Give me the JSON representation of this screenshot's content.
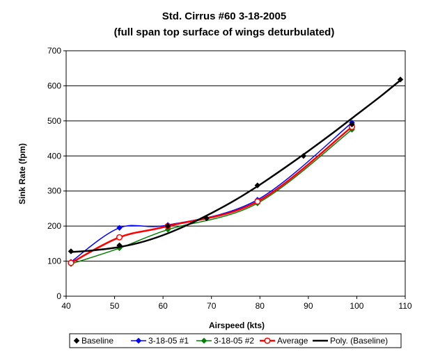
{
  "chart_data": {
    "type": "line",
    "title": "Std. Cirrus #60 3-18-2005",
    "subtitle": "(full span top surface of wings deturbulated)",
    "xlabel": "Airspeed (kts)",
    "ylabel": "Sink Rate (fpm)",
    "xlim": [
      40,
      110
    ],
    "ylim": [
      0,
      700
    ],
    "x_ticks": [
      "40",
      "50",
      "60",
      "70",
      "80",
      "90",
      "100",
      "110"
    ],
    "y_ticks": [
      "0",
      "100",
      "200",
      "300",
      "400",
      "500",
      "600",
      "700"
    ],
    "grid": "horizontal",
    "legend_position": "bottom",
    "series": [
      {
        "name": "Baseline",
        "color": "#000000",
        "marker": "diamond",
        "line": "none",
        "x": [
          41,
          51,
          61,
          69,
          79.5,
          89,
          99,
          109
        ],
        "y": [
          128,
          145,
          200,
          222,
          316,
          400,
          490,
          618
        ]
      },
      {
        "name": "3-18-05 #1",
        "color": "#0000ff",
        "marker": "diamond",
        "line": "smooth",
        "x": [
          41,
          51,
          61,
          79.5,
          99
        ],
        "y": [
          98,
          195,
          203,
          275,
          495
        ]
      },
      {
        "name": "3-18-05 #2",
        "color": "#008000",
        "marker": "diamond",
        "line": "smooth",
        "x": [
          41,
          51,
          61,
          79.5,
          99
        ],
        "y": [
          92,
          137,
          190,
          265,
          475
        ]
      },
      {
        "name": "Average",
        "color": "#ff0000",
        "marker": "circle",
        "line": "smooth",
        "x": [
          41,
          51,
          61,
          79.5,
          99
        ],
        "y": [
          95,
          168,
          200,
          270,
          483
        ]
      },
      {
        "name": "Poly. (Baseline)",
        "color": "#000000",
        "marker": "none",
        "line": "trend",
        "x": [
          41,
          45,
          50,
          55,
          60,
          65,
          70,
          75,
          80,
          85,
          90,
          95,
          100,
          105,
          109
        ],
        "y": [
          126,
          130,
          138,
          152,
          174,
          203,
          237,
          275,
          318,
          365,
          414,
          465,
          518,
          571,
          616
        ]
      }
    ]
  }
}
